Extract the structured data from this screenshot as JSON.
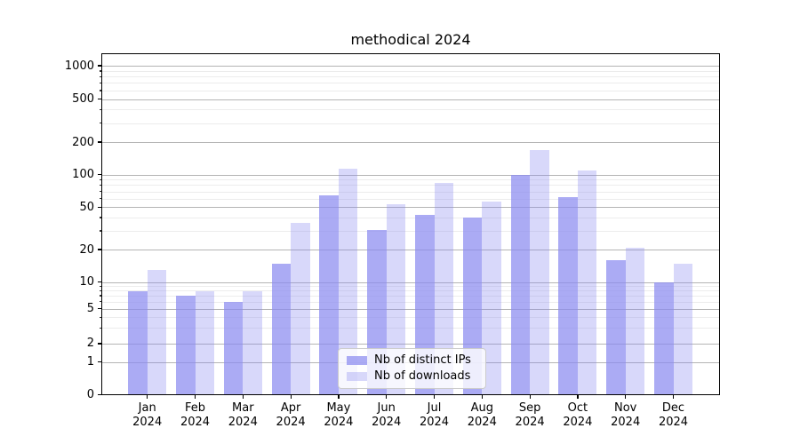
{
  "title": "methodical 2024",
  "chart_data": {
    "type": "bar",
    "title": "methodical 2024",
    "y_scale": "symlog",
    "grid": true,
    "legend_position": "bottom-center",
    "categories": [
      "Jan",
      "Feb",
      "Mar",
      "Apr",
      "May",
      "Jun",
      "Jul",
      "Aug",
      "Sep",
      "Oct",
      "Nov",
      "Dec"
    ],
    "x_year": "2024",
    "y_ticks": [
      0,
      1,
      2,
      5,
      10,
      20,
      50,
      100,
      200,
      500,
      1000
    ],
    "ylim": [
      0,
      1250
    ],
    "series": [
      {
        "name": "Nb of distinct IPs",
        "color": "rgba(138,138,240,0.72)",
        "values": [
          8,
          7,
          6,
          15,
          65,
          31,
          43,
          40,
          100,
          62,
          16,
          10
        ]
      },
      {
        "name": "Nb of downloads",
        "color": "rgba(138,138,240,0.33)",
        "values": [
          13,
          8,
          8,
          36,
          115,
          54,
          84,
          57,
          170,
          110,
          21,
          15
        ]
      }
    ],
    "colors": {
      "bar_base": "#8a8af0",
      "grid_major": "#b4b4b4",
      "grid_minor": "#ececec",
      "spine": "#000000",
      "legend_border": "#cccccc"
    }
  }
}
